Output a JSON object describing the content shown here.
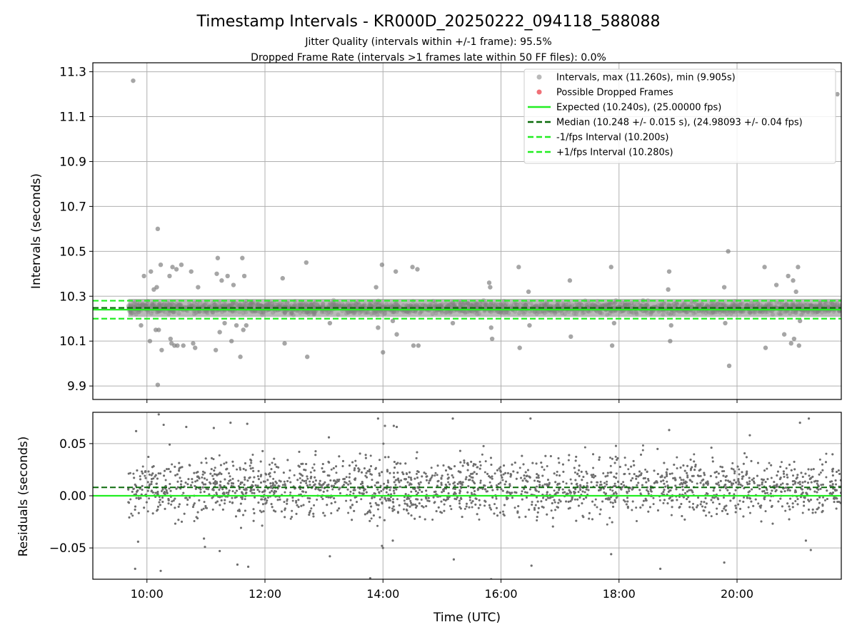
{
  "title": "Timestamp Intervals - KR000D_20250222_094118_588088",
  "subtitle_lines": [
    "Jitter Quality (intervals within +/-1 frame): 95.5%",
    "Dropped Frame Rate (intervals >1 frames late within 50 FF files): 0.0%"
  ],
  "colors": {
    "points": "#808080",
    "dropped": "#e8242e",
    "expected": "#22ee22",
    "median": "#0b6b0b",
    "fps_interval": "#22ee22",
    "grid": "#b0b0b0"
  },
  "chart_data": [
    {
      "type": "scatter",
      "name": "intervals",
      "xlabel": "",
      "ylabel": "Intervals (seconds)",
      "xlim": [
        "09:05",
        "21:46"
      ],
      "ylim": [
        9.84,
        11.34
      ],
      "yticks": [
        9.9,
        10.1,
        10.3,
        10.5,
        10.7,
        10.9,
        11.1,
        11.3
      ],
      "ytick_labels": [
        "9.9",
        "10.1",
        "10.3",
        "10.5",
        "10.7",
        "10.9",
        "11.1",
        "11.3"
      ],
      "grid": true,
      "legend_position": "top-right",
      "legend": [
        {
          "label": "Intervals, max (11.260s), min (9.905s)",
          "kind": "marker",
          "color": "#808080"
        },
        {
          "label": "Possible Dropped Frames",
          "kind": "marker",
          "color": "#e8242e"
        },
        {
          "label": "Expected (10.240s), (25.00000 fps)",
          "kind": "solid",
          "color": "#22ee22"
        },
        {
          "label": "Median (10.248 +/- 0.015 s), (24.98093 +/- 0.04 fps)",
          "kind": "dashed",
          "color": "#0b6b0b"
        },
        {
          "label": "-1/fps Interval (10.200s)",
          "kind": "dashed",
          "color": "#22ee22"
        },
        {
          "label": "+1/fps Interval (10.280s)",
          "kind": "dashed",
          "color": "#22ee22"
        }
      ],
      "expected": 10.24,
      "median": 10.248,
      "minus_interval": 10.2,
      "plus_interval": 10.28,
      "band": {
        "x_start": "09:41",
        "x_end": "21:46",
        "y_low": 10.208,
        "y_high": 10.288
      },
      "outliers": [
        [
          "09:46",
          11.26
        ],
        [
          "09:54",
          10.17
        ],
        [
          "09:57",
          10.39
        ],
        [
          "10:03",
          10.1
        ],
        [
          "10:04",
          10.41
        ],
        [
          "10:07",
          10.33
        ],
        [
          "10:09",
          10.15
        ],
        [
          "10:10",
          10.34
        ],
        [
          "10:11",
          10.6
        ],
        [
          "10:12",
          10.15
        ],
        [
          "10:11",
          9.905
        ],
        [
          "10:14",
          10.44
        ],
        [
          "10:15",
          10.06
        ],
        [
          "10:23",
          10.39
        ],
        [
          "10:24",
          10.11
        ],
        [
          "10:25",
          10.09
        ],
        [
          "10:26",
          10.43
        ],
        [
          "10:28",
          10.08
        ],
        [
          "10:30",
          10.42
        ],
        [
          "10:31",
          10.08
        ],
        [
          "10:35",
          10.44
        ],
        [
          "10:37",
          10.08
        ],
        [
          "10:45",
          10.41
        ],
        [
          "10:47",
          10.09
        ],
        [
          "10:49",
          10.07
        ],
        [
          "10:52",
          10.34
        ],
        [
          "11:10",
          10.06
        ],
        [
          "11:11",
          10.4
        ],
        [
          "11:12",
          10.47
        ],
        [
          "11:14",
          10.14
        ],
        [
          "11:16",
          10.37
        ],
        [
          "11:19",
          10.18
        ],
        [
          "11:22",
          10.39
        ],
        [
          "11:26",
          10.1
        ],
        [
          "11:28",
          10.35
        ],
        [
          "11:31",
          10.17
        ],
        [
          "11:35",
          10.03
        ],
        [
          "11:37",
          10.47
        ],
        [
          "11:38",
          10.15
        ],
        [
          "11:39",
          10.39
        ],
        [
          "11:41",
          10.17
        ],
        [
          "12:18",
          10.38
        ],
        [
          "12:20",
          10.09
        ],
        [
          "12:42",
          10.45
        ],
        [
          "12:43",
          10.03
        ],
        [
          "13:06",
          10.18
        ],
        [
          "13:53",
          10.34
        ],
        [
          "13:55",
          10.16
        ],
        [
          "13:59",
          10.44
        ],
        [
          "14:00",
          10.05
        ],
        [
          "14:10",
          10.19
        ],
        [
          "14:13",
          10.41
        ],
        [
          "14:14",
          10.13
        ],
        [
          "14:30",
          10.43
        ],
        [
          "14:31",
          10.08
        ],
        [
          "14:35",
          10.42
        ],
        [
          "14:36",
          10.08
        ],
        [
          "15:11",
          10.18
        ],
        [
          "15:48",
          10.36
        ],
        [
          "15:49",
          10.34
        ],
        [
          "15:50",
          10.16
        ],
        [
          "15:51",
          10.11
        ],
        [
          "16:18",
          10.43
        ],
        [
          "16:19",
          10.07
        ],
        [
          "16:28",
          10.32
        ],
        [
          "16:29",
          10.17
        ],
        [
          "17:10",
          10.37
        ],
        [
          "17:11",
          10.12
        ],
        [
          "17:52",
          10.43
        ],
        [
          "17:53",
          10.08
        ],
        [
          "17:55",
          10.18
        ],
        [
          "18:50",
          10.33
        ],
        [
          "18:51",
          10.41
        ],
        [
          "18:52",
          10.1
        ],
        [
          "18:53",
          10.17
        ],
        [
          "19:47",
          10.34
        ],
        [
          "19:48",
          10.18
        ],
        [
          "19:51",
          10.5
        ],
        [
          "19:52",
          9.99
        ],
        [
          "20:28",
          10.43
        ],
        [
          "20:29",
          10.07
        ],
        [
          "20:40",
          10.35
        ],
        [
          "20:48",
          10.13
        ],
        [
          "20:52",
          10.39
        ],
        [
          "20:55",
          10.09
        ],
        [
          "20:57",
          10.37
        ],
        [
          "20:58",
          10.11
        ],
        [
          "21:02",
          10.43
        ],
        [
          "21:03",
          10.08
        ],
        [
          "21:00",
          10.32
        ],
        [
          "21:04",
          10.19
        ],
        [
          "21:42",
          11.2
        ]
      ]
    },
    {
      "type": "scatter",
      "name": "residuals",
      "xlabel": "Time (UTC)",
      "ylabel": "Residuals (seconds)",
      "xlim": [
        "09:05",
        "21:46"
      ],
      "ylim": [
        -0.08,
        0.08
      ],
      "yticks": [
        -0.05,
        0.0,
        0.05
      ],
      "ytick_labels": [
        "−0.05",
        "0.00",
        "0.05"
      ],
      "xticks": [
        "10:00",
        "12:00",
        "14:00",
        "16:00",
        "18:00",
        "20:00"
      ],
      "grid": true,
      "expected_line": 0.0,
      "median_line": 0.008,
      "bulk": {
        "x_start": "09:41",
        "x_end": "21:46",
        "y_center": 0.008,
        "y_spread": 0.02
      },
      "outliers": [
        [
          "09:48",
          -0.07
        ],
        [
          "09:49",
          0.062
        ],
        [
          "09:51",
          -0.044
        ],
        [
          "10:12",
          0.078
        ],
        [
          "10:14",
          -0.072
        ],
        [
          "10:17",
          0.068
        ],
        [
          "10:40",
          0.066
        ],
        [
          "10:58",
          -0.041
        ],
        [
          "10:59",
          -0.049
        ],
        [
          "11:08",
          0.065
        ],
        [
          "11:14",
          -0.053
        ],
        [
          "11:25",
          0.07
        ],
        [
          "11:32",
          -0.066
        ],
        [
          "11:42",
          0.069
        ],
        [
          "11:43",
          -0.068
        ],
        [
          "13:05",
          0.056
        ],
        [
          "13:06",
          -0.058
        ],
        [
          "13:47",
          -0.079
        ],
        [
          "13:55",
          0.074
        ],
        [
          "13:59",
          -0.048
        ],
        [
          "14:00",
          -0.05
        ],
        [
          "14:02",
          0.067
        ],
        [
          "14:10",
          -0.043
        ],
        [
          "14:11",
          0.067
        ],
        [
          "14:14",
          0.066
        ],
        [
          "15:11",
          0.074
        ],
        [
          "15:12",
          -0.061
        ],
        [
          "15:50",
          -0.08
        ],
        [
          "16:30",
          0.074
        ],
        [
          "16:31",
          -0.067
        ],
        [
          "17:52",
          -0.056
        ],
        [
          "18:42",
          -0.07
        ],
        [
          "18:51",
          0.063
        ],
        [
          "19:47",
          -0.064
        ],
        [
          "20:13",
          0.058
        ],
        [
          "21:04",
          0.07
        ],
        [
          "21:10",
          -0.043
        ],
        [
          "21:13",
          0.074
        ],
        [
          "21:15",
          -0.052
        ]
      ]
    }
  ]
}
